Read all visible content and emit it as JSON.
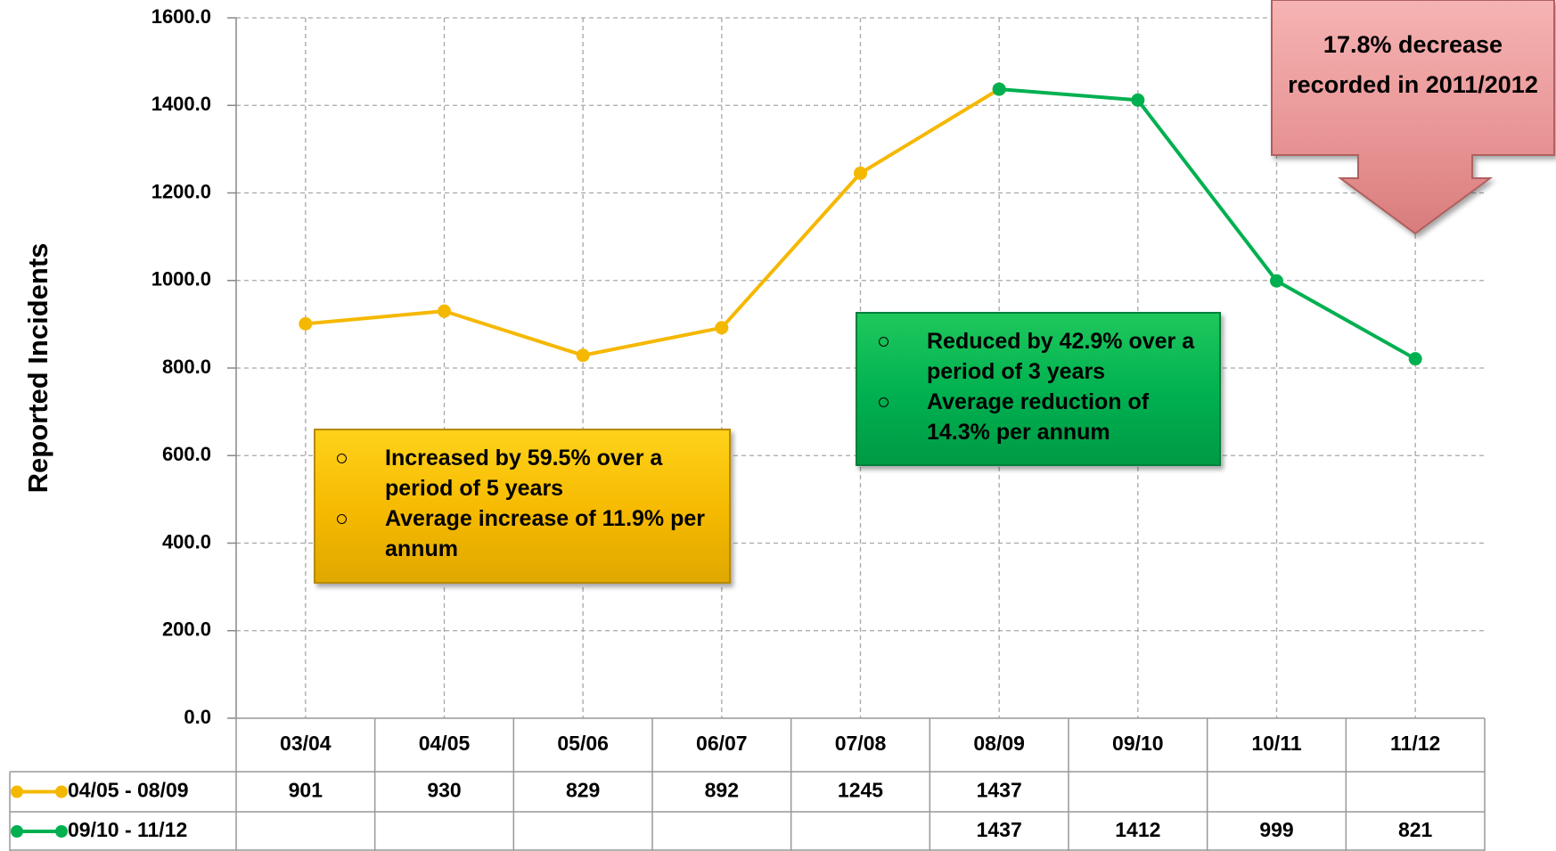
{
  "chart_data": {
    "type": "line",
    "y_label": "Reported Incidents",
    "categories": [
      "03/04",
      "04/05",
      "05/06",
      "06/07",
      "07/08",
      "08/09",
      "09/10",
      "10/11",
      "11/12"
    ],
    "series": [
      {
        "name": "04/05 - 08/09",
        "color": "#f5b800",
        "values": [
          901,
          930,
          829,
          892,
          1245,
          1437,
          null,
          null,
          null
        ]
      },
      {
        "name": "09/10 - 11/12",
        "color": "#00b050",
        "values": [
          null,
          null,
          null,
          null,
          null,
          1437,
          1412,
          999,
          821
        ]
      }
    ],
    "ylim": [
      0,
      1600
    ],
    "yticks": [
      {
        "value": 0,
        "label": "0.0"
      },
      {
        "value": 200,
        "label": "200.0"
      },
      {
        "value": 400,
        "label": "400.0"
      },
      {
        "value": 600,
        "label": "600.0"
      },
      {
        "value": 800,
        "label": "800.0"
      },
      {
        "value": 1000,
        "label": "1000.0"
      },
      {
        "value": 1200,
        "label": "1200.0"
      },
      {
        "value": 1400,
        "label": "1400.0"
      },
      {
        "value": 1600,
        "label": "1600.0"
      }
    ],
    "grid": true,
    "annotations": [
      {
        "items": [
          "Increased by 59.5% over a period of 5 years",
          "Average increase of  11.9% per annum"
        ]
      },
      {
        "items": [
          "Reduced by 42.9% over a period of 3 years",
          "Average reduction of 14.3% per annum"
        ]
      },
      {
        "text": "17.8% decrease recorded in 2011/2012"
      }
    ]
  }
}
